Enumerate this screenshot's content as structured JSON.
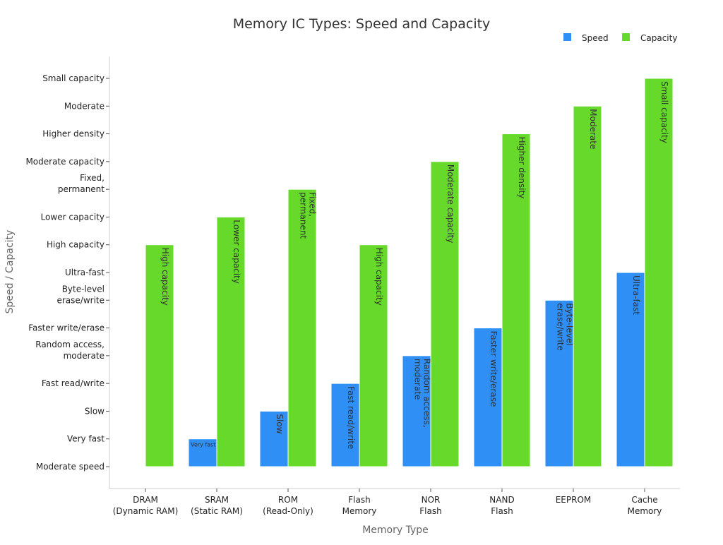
{
  "chart_data": {
    "type": "bar",
    "title": "Memory IC Types: Speed and Capacity",
    "xlabel": "Memory Type",
    "ylabel": "Speed / Capacity",
    "categories": [
      "DRAM\n(Dynamic RAM)",
      "SRAM\n(Static RAM)",
      "ROM\n(Read-Only)",
      "Flash\nMemory",
      "NOR\nFlash",
      "NAND\nFlash",
      "EEPROM",
      "Cache\nMemory"
    ],
    "y_ticks": [
      "Moderate speed",
      "Very fast",
      "Slow",
      "Fast read/write",
      "Random access,\nmoderate",
      "Faster write/erase",
      "Byte-level\nerase/write",
      "Ultra-fast",
      "High capacity",
      "Lower capacity",
      "Fixed,\npermanent",
      "Moderate capacity",
      "Higher density",
      "Moderate",
      "Small capacity"
    ],
    "ylim": [
      -0.75,
      14.75
    ],
    "grid": false,
    "legend_position": "top-right",
    "series": [
      {
        "name": "Speed",
        "color": "#2f8ff5",
        "values": [
          0,
          1,
          2,
          3,
          4,
          5,
          6,
          7
        ],
        "labels": [
          "Moderate speed",
          "Very fast",
          "Slow",
          "Fast read/write",
          "Random access,\nmoderate",
          "Faster write/erase",
          "Byte-level\nerase/write",
          "Ultra-fast"
        ]
      },
      {
        "name": "Capacity",
        "color": "#66d92a",
        "values": [
          8,
          9,
          10,
          8,
          11,
          12,
          13,
          14
        ],
        "labels": [
          "High capacity",
          "Lower capacity",
          "Fixed,\npermanent",
          "High capacity",
          "Moderate capacity",
          "Higher density",
          "Moderate",
          "Small capacity"
        ]
      }
    ]
  }
}
